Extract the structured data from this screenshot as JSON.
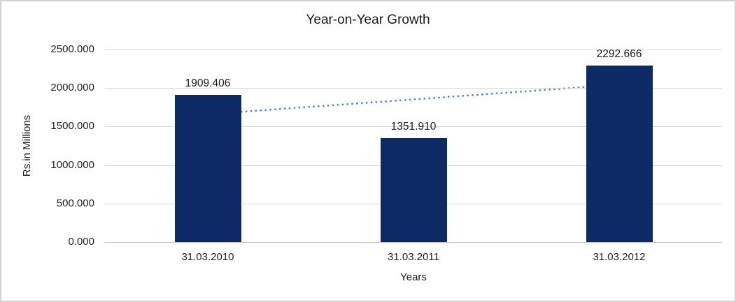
{
  "chart_data": {
    "type": "bar",
    "title": "Year-on-Year Growth",
    "xlabel": "Years",
    "ylabel": "Rs.in Millions",
    "categories": [
      "31.03.2010",
      "31.03.2011",
      "31.03.2012"
    ],
    "values": [
      1909.406,
      1351.91,
      2292.666
    ],
    "value_labels": [
      "1909.406",
      "1351.910",
      "2292.666"
    ],
    "ylim": [
      0,
      2500
    ],
    "ytick_values": [
      0,
      500,
      1000,
      1500,
      2000,
      2500
    ],
    "ytick_labels": [
      "0.000",
      "500.000",
      "1000.000",
      "1500.000",
      "2000.000",
      "2500.000"
    ],
    "grid": true,
    "legend": "none",
    "bar_color": "#0c2a66",
    "gridline_color": "#d9d9d9",
    "axis_line_color": "#bfbfbf",
    "trendline": {
      "kind": "linear",
      "style": "dotted",
      "color": "#4e87c7",
      "start_value": 1659.7,
      "end_value": 2042.9
    }
  }
}
